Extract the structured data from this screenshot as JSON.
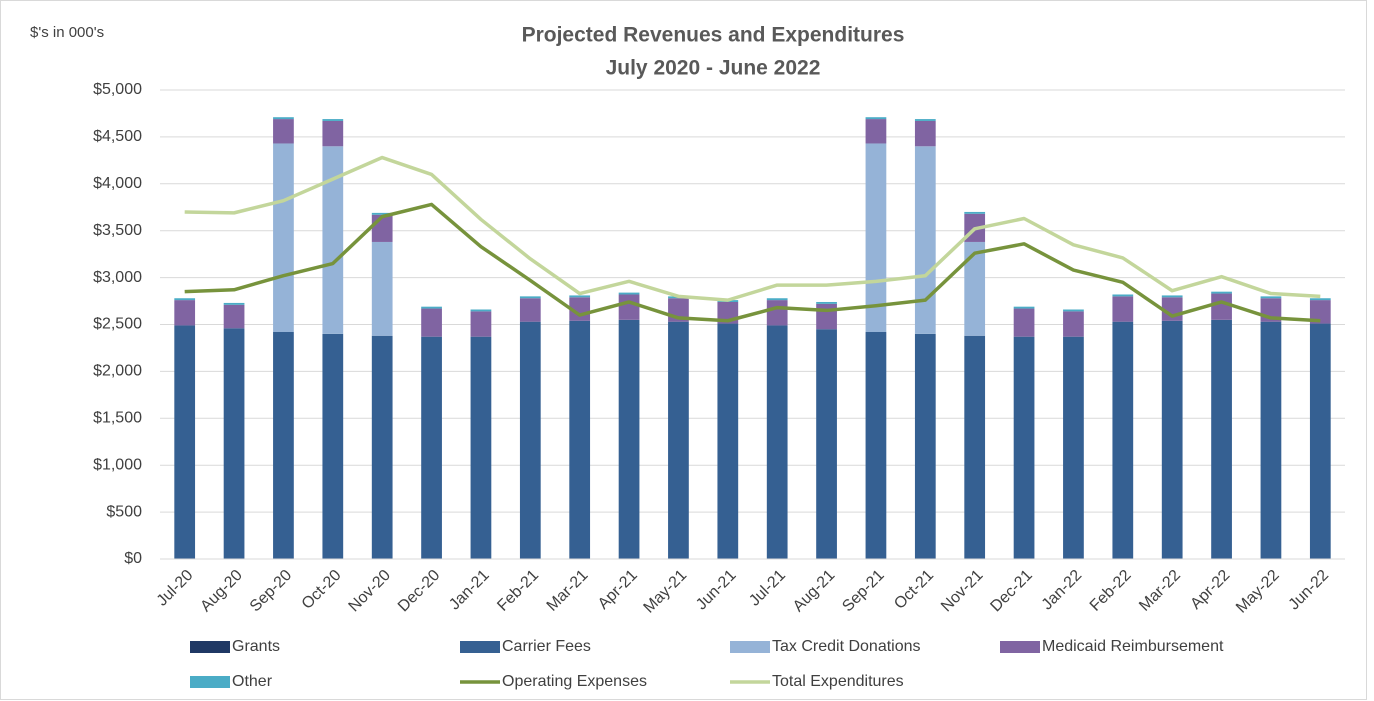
{
  "chart_data": {
    "type": "bar",
    "title": "Projected Revenues and Expenditures",
    "subtitle": "July 2020 - June 2022",
    "y_label": "$'s in 000's",
    "categories": [
      "Jul-20",
      "Aug-20",
      "Sep-20",
      "Oct-20",
      "Nov-20",
      "Dec-20",
      "Jan-21",
      "Feb-21",
      "Mar-21",
      "Apr-21",
      "May-21",
      "Jun-21",
      "Jul-21",
      "Aug-21",
      "Sep-21",
      "Oct-21",
      "Nov-21",
      "Dec-21",
      "Jan-22",
      "Feb-22",
      "Mar-22",
      "Apr-22",
      "May-22",
      "Jun-22"
    ],
    "series": [
      {
        "name": "Grants",
        "color": "#1f3864",
        "kind": "bar",
        "values": [
          0,
          0,
          0,
          0,
          0,
          0,
          0,
          0,
          0,
          0,
          0,
          0,
          0,
          0,
          0,
          0,
          0,
          0,
          0,
          0,
          0,
          0,
          0,
          0
        ]
      },
      {
        "name": "Carrier Fees",
        "color": "#356092",
        "kind": "bar",
        "values": [
          2490,
          2460,
          2420,
          2400,
          2380,
          2370,
          2370,
          2530,
          2540,
          2550,
          2530,
          2510,
          2490,
          2450,
          2420,
          2400,
          2380,
          2370,
          2370,
          2530,
          2540,
          2550,
          2530,
          2510
        ]
      },
      {
        "name": "Tax Credit Donations",
        "color": "#95b3d7",
        "kind": "bar",
        "values": [
          0,
          0,
          2010,
          2000,
          1000,
          0,
          0,
          0,
          0,
          0,
          0,
          0,
          0,
          0,
          2010,
          2000,
          1000,
          0,
          0,
          0,
          0,
          0,
          0,
          0
        ]
      },
      {
        "name": "Medicaid Reimbursement",
        "color": "#8064a2",
        "kind": "bar",
        "values": [
          270,
          250,
          260,
          270,
          290,
          300,
          270,
          250,
          250,
          270,
          250,
          230,
          270,
          270,
          260,
          270,
          300,
          300,
          270,
          270,
          250,
          280,
          250,
          250
        ]
      },
      {
        "name": "Other",
        "color": "#4bacc6",
        "kind": "bar",
        "values": [
          20,
          20,
          20,
          20,
          20,
          20,
          20,
          20,
          20,
          20,
          20,
          20,
          20,
          20,
          20,
          20,
          20,
          20,
          20,
          20,
          20,
          20,
          20,
          20
        ]
      },
      {
        "name": "Operating Expenses",
        "color": "#77933c",
        "kind": "line",
        "values": [
          2850,
          2870,
          3020,
          3150,
          3650,
          3780,
          3330,
          2970,
          2600,
          2740,
          2570,
          2540,
          2680,
          2650,
          2700,
          2760,
          3260,
          3360,
          3080,
          2950,
          2590,
          2740,
          2570,
          2540
        ]
      },
      {
        "name": "Total Expenditures",
        "color": "#c3d69b",
        "kind": "line",
        "values": [
          3700,
          3690,
          3820,
          4050,
          4280,
          4100,
          3620,
          3200,
          2830,
          2960,
          2800,
          2760,
          2920,
          2920,
          2960,
          3020,
          3520,
          3630,
          3350,
          3210,
          2860,
          3010,
          2830,
          2800
        ]
      }
    ],
    "ylim": [
      0,
      5000
    ],
    "yticks": [
      {
        "value": 0,
        "label": "$0"
      },
      {
        "value": 500,
        "label": "$500"
      },
      {
        "value": 1000,
        "label": "$1,000"
      },
      {
        "value": 1500,
        "label": "$1,500"
      },
      {
        "value": 2000,
        "label": "$2,000"
      },
      {
        "value": 2500,
        "label": "$2,500"
      },
      {
        "value": 3000,
        "label": "$3,000"
      },
      {
        "value": 3500,
        "label": "$3,500"
      },
      {
        "value": 4000,
        "label": "$4,000"
      },
      {
        "value": 4500,
        "label": "$4,500"
      },
      {
        "value": 5000,
        "label": "$5,000"
      }
    ],
    "grid": true,
    "legend": "bottom"
  }
}
